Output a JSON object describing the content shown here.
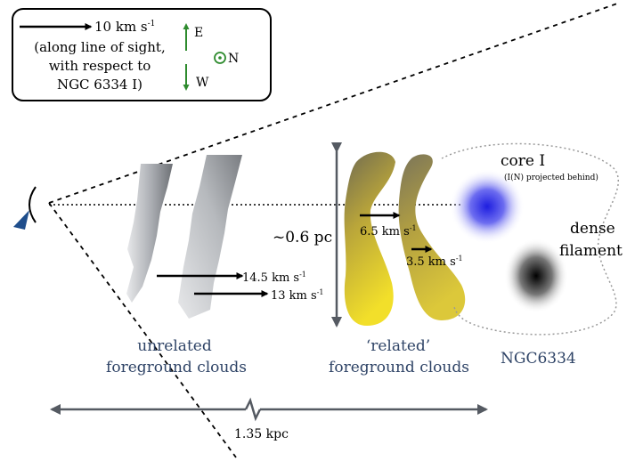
{
  "legend": {
    "arrow_label": "10 km s",
    "arrow_label_sup": "-1",
    "note_line1": "(along line of sight,",
    "note_line2": "with respect to",
    "note_line3": "NGC 6334 I)",
    "east": "E",
    "west": "W",
    "north": "N"
  },
  "scale": {
    "height_label": "~0.6 pc",
    "distance_label": "1.35 kpc"
  },
  "velocities": {
    "v1": "14.5 km s",
    "v2": "13 km s",
    "v3": "6.5 km s",
    "v4": "3.5 km s",
    "unit_sup": "-1"
  },
  "objects": {
    "core_label": "core I",
    "core_note": "(I(N) projected behind)",
    "filament_line1": "dense",
    "filament_line2": "filament",
    "region_label": "NGC6334"
  },
  "groups": {
    "unrelated_line1": "unrelated",
    "unrelated_line2": "foreground clouds",
    "related_line1": "‘related’",
    "related_line2": "foreground clouds"
  },
  "colors": {
    "navy_text": "#2e4366",
    "arrow_green": "#2e8b2e",
    "core_blue": "#2a2ae6",
    "observer_blue": "#1f4e8c",
    "scale_gray": "#555a62"
  }
}
